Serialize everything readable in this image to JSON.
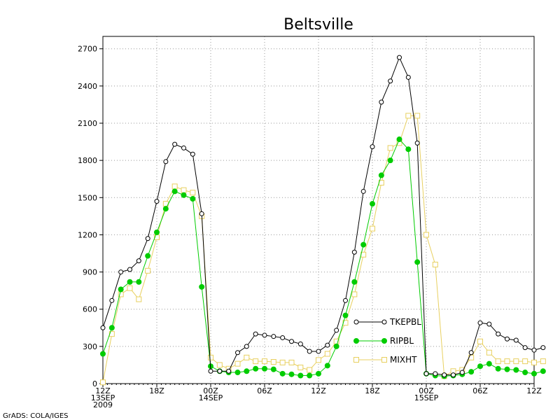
{
  "footer": "GrADS: COLA/IGES",
  "chart_data": {
    "type": "line",
    "title": "Beltsville",
    "ylim": [
      0,
      2800
    ],
    "yticks": [
      0,
      300,
      600,
      900,
      1200,
      1500,
      1800,
      2100,
      2400,
      2700
    ],
    "xlim": [
      0,
      48
    ],
    "xticks": [
      {
        "x": 0,
        "lines": [
          "12Z",
          "13SEP",
          "2009"
        ]
      },
      {
        "x": 6,
        "lines": [
          "18Z"
        ]
      },
      {
        "x": 12,
        "lines": [
          "00Z",
          "14SEP"
        ]
      },
      {
        "x": 18,
        "lines": [
          "06Z"
        ]
      },
      {
        "x": 24,
        "lines": [
          "12Z"
        ]
      },
      {
        "x": 30,
        "lines": [
          "18Z"
        ]
      },
      {
        "x": 36,
        "lines": [
          "00Z",
          "15SEP"
        ]
      },
      {
        "x": 42,
        "lines": [
          "06Z"
        ]
      },
      {
        "x": 48,
        "lines": [
          "12Z"
        ]
      }
    ],
    "grid": true,
    "legend": "lower-center",
    "series": [
      {
        "name": "TKEPBL",
        "color": "#000000",
        "marker": "open-circle",
        "values": [
          450,
          670,
          900,
          920,
          990,
          1170,
          1470,
          1790,
          1930,
          1900,
          1850,
          1370,
          100,
          100,
          100,
          250,
          300,
          400,
          390,
          380,
          370,
          340,
          320,
          260,
          260,
          310,
          430,
          670,
          1060,
          1550,
          1910,
          2270,
          2440,
          2630,
          2470,
          1940,
          80,
          80,
          70,
          70,
          90,
          250,
          490,
          480,
          400,
          360,
          350,
          290,
          270,
          290
        ]
      },
      {
        "name": "RIPBL",
        "color": "#00cc00",
        "marker": "filled-circle",
        "values": [
          240,
          450,
          760,
          820,
          820,
          1030,
          1220,
          1410,
          1550,
          1520,
          1490,
          780,
          140,
          100,
          90,
          90,
          100,
          120,
          120,
          115,
          80,
          75,
          65,
          65,
          80,
          145,
          300,
          550,
          820,
          1120,
          1450,
          1680,
          1800,
          1970,
          1890,
          980,
          80,
          65,
          60,
          65,
          75,
          95,
          140,
          160,
          120,
          115,
          110,
          90,
          80,
          100
        ]
      },
      {
        "name": "MIXHT",
        "color": "#e8d060",
        "marker": "open-square",
        "values": [
          10,
          400,
          720,
          770,
          680,
          910,
          1180,
          1450,
          1590,
          1560,
          1540,
          1350,
          210,
          150,
          120,
          160,
          210,
          180,
          180,
          175,
          170,
          170,
          130,
          110,
          190,
          240,
          340,
          490,
          720,
          1040,
          1250,
          1620,
          1900,
          1940,
          2160,
          2160,
          1200,
          960,
          60,
          100,
          110,
          210,
          340,
          250,
          180,
          180,
          180,
          180,
          170,
          180
        ]
      }
    ]
  }
}
